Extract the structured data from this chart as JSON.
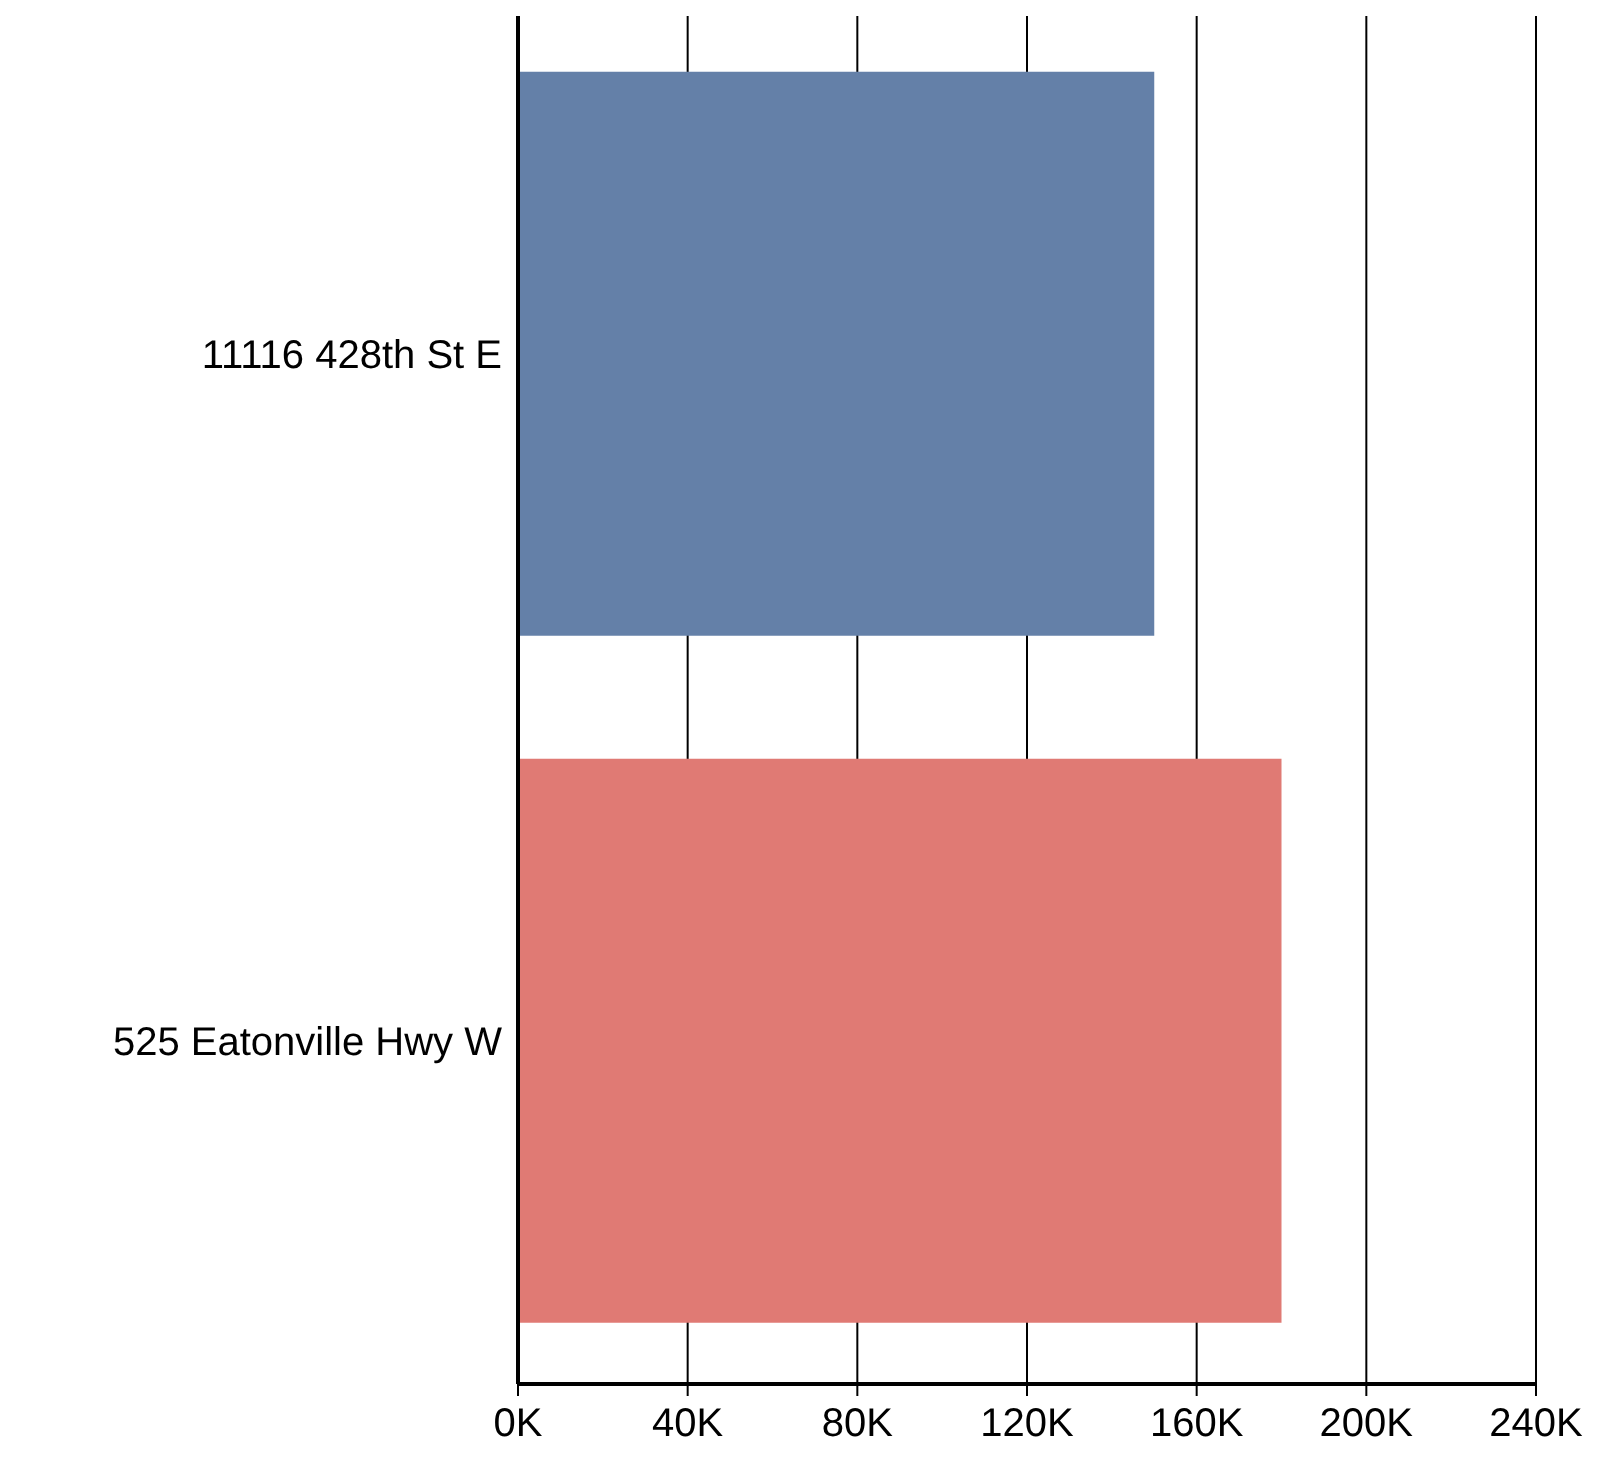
{
  "chart_data": {
    "type": "bar",
    "orientation": "horizontal",
    "categories": [
      "11116 428th St E",
      "525 Eatonville Hwy W"
    ],
    "values": [
      150000,
      180000
    ],
    "colors": [
      "#6480a8",
      "#e07a74"
    ],
    "xlim": [
      0,
      240000
    ],
    "xticks": [
      {
        "value": 0,
        "label": "0K"
      },
      {
        "value": 40000,
        "label": "40K"
      },
      {
        "value": 80000,
        "label": "80K"
      },
      {
        "value": 120000,
        "label": "120K"
      },
      {
        "value": 160000,
        "label": "160K"
      },
      {
        "value": 200000,
        "label": "200K"
      },
      {
        "value": 240000,
        "label": "240K"
      }
    ],
    "grid": "x"
  }
}
